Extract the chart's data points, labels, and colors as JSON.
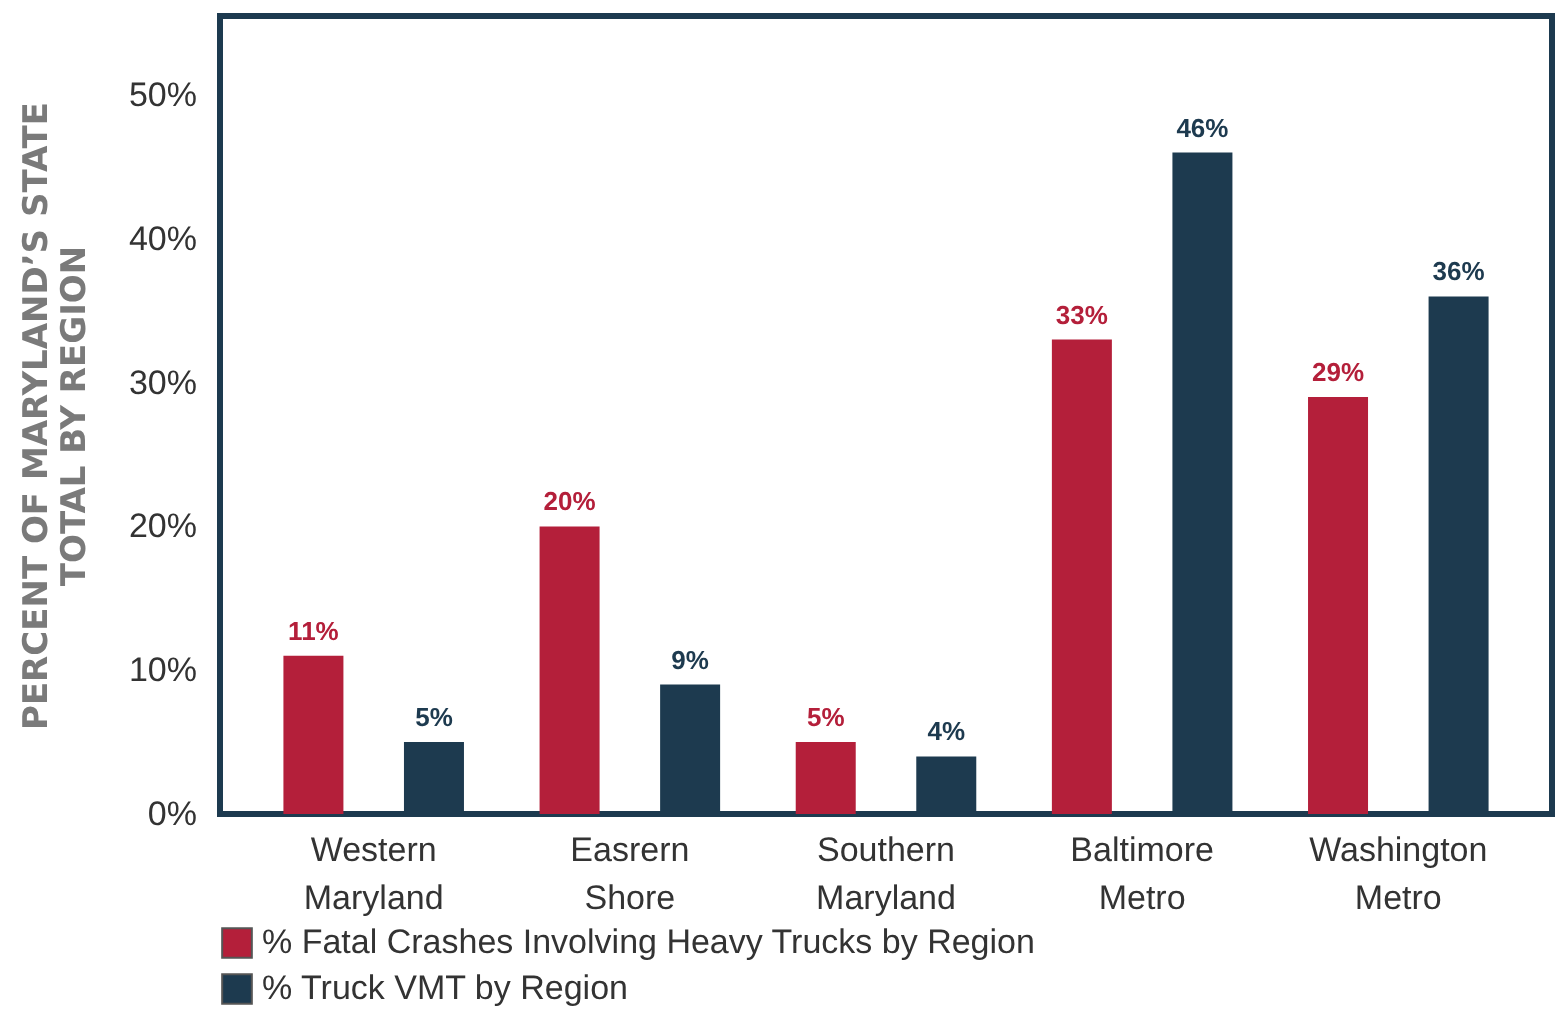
{
  "chart_data": {
    "type": "bar",
    "ylabel": "PERCENT OF MARYLAND’S STATE TOTAL BY REGION",
    "categories": [
      "Western Maryland",
      "Easrern Shore",
      "Southern Maryland",
      "Baltimore Metro",
      "Washington Metro"
    ],
    "series": [
      {
        "name": "% Fatal Crashes Involving Heavy Trucks by Region",
        "color": "#b41f3a",
        "values": [
          11,
          20,
          5,
          33,
          29
        ],
        "value_labels": [
          "11%",
          "20%",
          "5%",
          "33%",
          "29%"
        ]
      },
      {
        "name": "% Truck VMT by Region",
        "color": "#1d3a4f",
        "values": [
          5,
          9,
          4,
          46,
          36
        ],
        "value_labels": [
          "5%",
          "9%",
          "4%",
          "46%",
          "36%"
        ]
      }
    ],
    "ylim": [
      0,
      55.5
    ],
    "yticks": [
      {
        "value": 0,
        "label": "0%"
      },
      {
        "value": 10,
        "label": "10%"
      },
      {
        "value": 20,
        "label": "20%"
      },
      {
        "value": 30,
        "label": "30%"
      },
      {
        "value": 40,
        "label": "40%"
      },
      {
        "value": 50,
        "label": "50%"
      }
    ],
    "legend": "bottom",
    "grid": false
  }
}
